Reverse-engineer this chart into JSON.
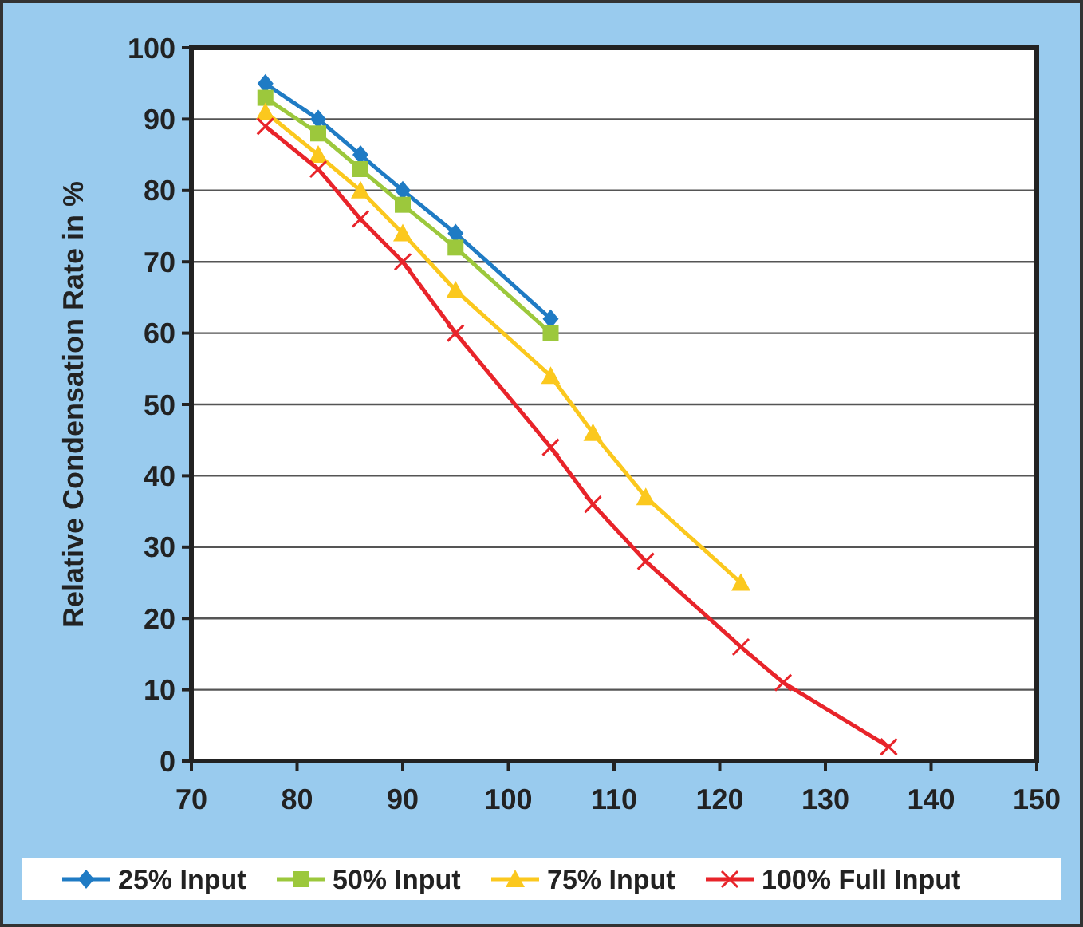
{
  "chart_data": {
    "type": "line",
    "ylabel": "Relative Condensation Rate in %",
    "xlim": [
      70,
      150
    ],
    "xticks": [
      70,
      80,
      90,
      100,
      110,
      120,
      130,
      140,
      150
    ],
    "ylim": [
      0,
      100
    ],
    "yticks": [
      0,
      10,
      20,
      30,
      40,
      50,
      60,
      70,
      80,
      90,
      100
    ],
    "grid": "y",
    "legend": "bottom",
    "series": [
      {
        "name": "25% Input",
        "color": "#1f7bc4",
        "marker": "diamond",
        "x": [
          77,
          82,
          86,
          90,
          95,
          104
        ],
        "values": [
          95,
          90,
          85,
          80,
          74,
          62
        ]
      },
      {
        "name": "50% Input",
        "color": "#9cc83c",
        "marker": "square",
        "x": [
          77,
          82,
          86,
          90,
          95,
          104
        ],
        "values": [
          93,
          88,
          83,
          78,
          72,
          60
        ]
      },
      {
        "name": "75% Input",
        "color": "#fbc81e",
        "marker": "triangle",
        "x": [
          77,
          82,
          86,
          90,
          95,
          104,
          108,
          113,
          122
        ],
        "values": [
          91,
          85,
          80,
          74,
          66,
          54,
          46,
          37,
          25
        ]
      },
      {
        "name": "100% Full Input",
        "color": "#e8242a",
        "marker": "cross",
        "x": [
          77,
          82,
          86,
          90,
          95,
          104,
          108,
          113,
          122,
          126,
          136
        ],
        "values": [
          89,
          83,
          76,
          70,
          60,
          44,
          36,
          28,
          16,
          11,
          2
        ]
      }
    ]
  }
}
